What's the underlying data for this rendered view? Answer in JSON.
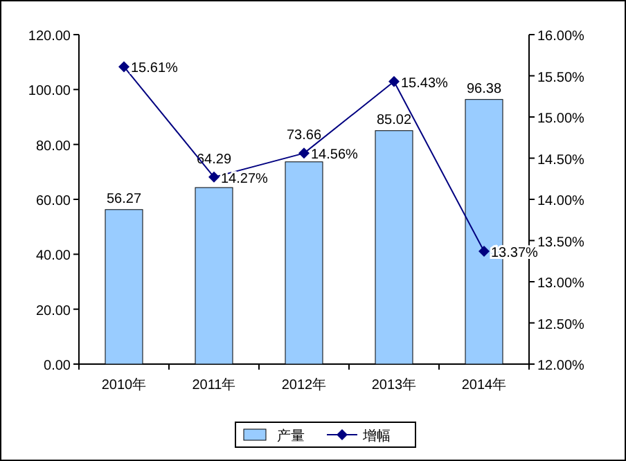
{
  "chart_data": {
    "type": "bar",
    "categories": [
      "2010年",
      "2011年",
      "2012年",
      "2013年",
      "2014年"
    ],
    "series": [
      {
        "name": "产量",
        "color": "#99ccff",
        "values": [
          56.27,
          64.29,
          73.66,
          85.02,
          96.38
        ]
      },
      {
        "name": "增幅",
        "type": "line",
        "axis": "y2",
        "color": "#000080",
        "marker": "diamond",
        "values": [
          15.61,
          14.27,
          14.56,
          15.43,
          13.37
        ],
        "value_labels": [
          "15.61%",
          "14.27%",
          "14.56%",
          "15.43%",
          "13.37%"
        ]
      }
    ],
    "data_labels": true,
    "grid": false,
    "legend": "bottom",
    "ylim": [
      0,
      120
    ],
    "yticks": [
      {
        "value": 0,
        "label": "0.00"
      },
      {
        "value": 20,
        "label": "20.00"
      },
      {
        "value": 40,
        "label": "40.00"
      },
      {
        "value": 60,
        "label": "60.00"
      },
      {
        "value": 80,
        "label": "80.00"
      },
      {
        "value": 100,
        "label": "100.00"
      },
      {
        "value": 120,
        "label": "120.00"
      }
    ],
    "y2lim": [
      12,
      16
    ],
    "y2ticks": [
      {
        "value": 12,
        "label": "12.00%"
      },
      {
        "value": 12.5,
        "label": "12.50%"
      },
      {
        "value": 13,
        "label": "13.00%"
      },
      {
        "value": 13.5,
        "label": "13.50%"
      },
      {
        "value": 14,
        "label": "14.00%"
      },
      {
        "value": 14.5,
        "label": "14.50%"
      },
      {
        "value": 15,
        "label": "15.00%"
      },
      {
        "value": 15.5,
        "label": "15.50%"
      },
      {
        "value": 16,
        "label": "16.00%"
      }
    ]
  }
}
